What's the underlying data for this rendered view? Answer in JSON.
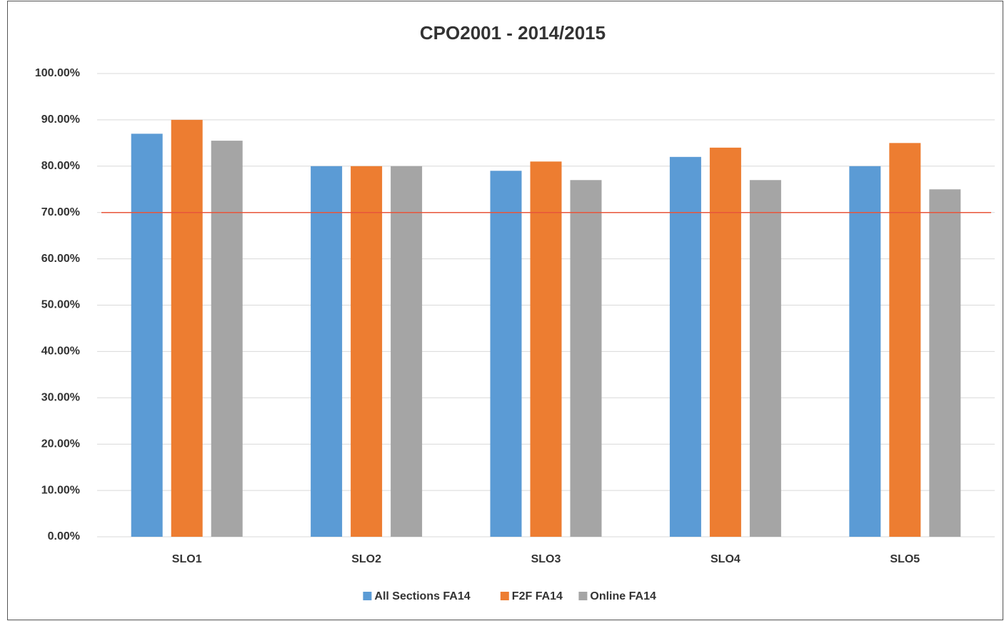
{
  "chart_data": {
    "type": "bar",
    "title": "CPO2001 - 2014/2015",
    "categories": [
      "SLO1",
      "SLO2",
      "SLO3",
      "SLO4",
      "SLO5"
    ],
    "series": [
      {
        "name": "All Sections FA14",
        "color": "#5b9bd5",
        "values": [
          87,
          80,
          79,
          82,
          80
        ]
      },
      {
        "name": "F2F FA14",
        "color": "#ed7d31",
        "values": [
          90,
          80,
          81,
          84,
          85
        ]
      },
      {
        "name": "Online FA14",
        "color": "#a5a5a5",
        "values": [
          85.5,
          80,
          77,
          77,
          75
        ]
      }
    ],
    "ylim": [
      0,
      100
    ],
    "yticks": [
      {
        "value": 0,
        "label": "0.00%"
      },
      {
        "value": 10,
        "label": "10.00%"
      },
      {
        "value": 20,
        "label": "20.00%"
      },
      {
        "value": 30,
        "label": "30.00%"
      },
      {
        "value": 40,
        "label": "40.00%"
      },
      {
        "value": 50,
        "label": "50.00%"
      },
      {
        "value": 60,
        "label": "60.00%"
      },
      {
        "value": 70,
        "label": "70.00%"
      },
      {
        "value": 80,
        "label": "80.00%"
      },
      {
        "value": 90,
        "label": "90.00%"
      },
      {
        "value": 100,
        "label": "100.00%"
      }
    ],
    "reference_line": {
      "value": 70,
      "color": "#e8553a"
    },
    "grid": true,
    "legend": "bottom"
  }
}
